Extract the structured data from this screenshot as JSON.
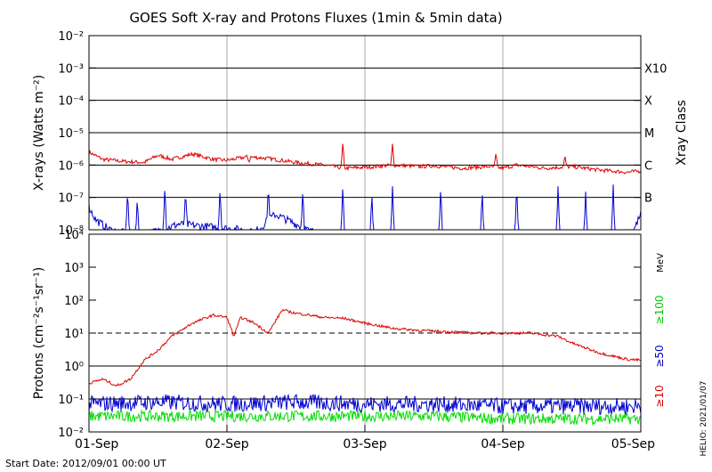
{
  "title": "GOES Soft X-ray and Protons Fluxes   (1min & 5min data)",
  "start_date_label": "Start Date: 2012/09/01 00:00 UT",
  "credit": "HELIO: 2021/01/07",
  "colors": {
    "xray_long": "#dd0000",
    "xray_short": "#0000cc",
    "proton_10": "#dd0000",
    "proton_50": "#0000cc",
    "proton_100": "#00dd00",
    "grid_vertical": "#aaaaaa",
    "grid_horizontal": "#000000"
  },
  "chart_data": [
    {
      "type": "line",
      "panel": "xray",
      "xlabel": "",
      "ylabel": "X-rays (Watts m⁻²)",
      "y_scale": "log",
      "ylim": [
        1e-08,
        0.01
      ],
      "xlim": [
        "2012-09-01",
        "2012-09-05"
      ],
      "y_ticks": [
        "10⁻⁸",
        "10⁻⁷",
        "10⁻⁶",
        "10⁻⁵",
        "10⁻⁴",
        "10⁻³",
        "10⁻²"
      ],
      "right_axis_title": "Xray Class",
      "class_labels": [
        {
          "label": "B",
          "value": 1e-07
        },
        {
          "label": "C",
          "value": 1e-06
        },
        {
          "label": "M",
          "value": 1e-05
        },
        {
          "label": "X",
          "value": 0.0001
        },
        {
          "label": "X10",
          "value": 0.001
        }
      ],
      "horizontal_lines": [
        1e-07,
        1e-06,
        1e-05,
        0.0001,
        0.001
      ],
      "series": [
        {
          "color_key": "xray_long",
          "x": [
            0,
            0.1,
            0.25,
            0.4,
            0.5,
            0.6,
            0.75,
            0.9,
            1.0,
            1.15,
            1.3,
            1.5,
            1.7,
            1.85,
            2.0,
            2.2,
            2.4,
            2.5,
            2.7,
            2.9,
            3.0,
            3.1,
            3.3,
            3.5,
            3.7,
            3.9,
            4.0
          ],
          "y": [
            2.5e-06,
            1.5e-06,
            1.3e-06,
            1.2e-06,
            2e-06,
            1.5e-06,
            2.2e-06,
            1.5e-06,
            1.4e-06,
            1.8e-06,
            1.6e-06,
            1.2e-06,
            1e-06,
            8e-07,
            8.5e-07,
            1e-06,
            9e-07,
            9.5e-07,
            8e-07,
            9e-07,
            8e-07,
            1e-06,
            8e-07,
            9e-07,
            7e-07,
            6e-07,
            6.5e-07
          ],
          "spikes": [
            [
              1.16,
              1.2e-06
            ],
            [
              1.84,
              5.5e-06
            ],
            [
              2.2,
              4.5e-06
            ],
            [
              2.95,
              2.5e-06
            ],
            [
              3.45,
              2e-06
            ]
          ]
        },
        {
          "color_key": "xray_short",
          "x": [
            0,
            0.05,
            0.15,
            0.25,
            0.35,
            0.5,
            0.65,
            0.9,
            1.1,
            1.2,
            1.35,
            1.5,
            1.6,
            1.75,
            1.85,
            2.0,
            2.15,
            2.3,
            2.5,
            2.7,
            2.9,
            3.1,
            3.3,
            3.5,
            3.65,
            3.8,
            3.95,
            4.0
          ],
          "y": [
            5e-08,
            2e-08,
            1e-08,
            8e-09,
            7e-09,
            9e-09,
            1.5e-08,
            1.2e-08,
            1e-08,
            8e-09,
            3e-08,
            1.5e-08,
            9e-09,
            7e-09,
            8e-09,
            7e-09,
            6e-09,
            7e-09,
            6e-09,
            7e-09,
            6e-09,
            7e-09,
            6e-09,
            7e-09,
            6e-09,
            6e-09,
            1e-08,
            3e-08
          ],
          "spikes": [
            [
              0.28,
              2e-07
            ],
            [
              0.35,
              1e-07
            ],
            [
              0.55,
              2.5e-07
            ],
            [
              0.7,
              1.5e-07
            ],
            [
              0.95,
              2e-07
            ],
            [
              1.3,
              2.2e-07
            ],
            [
              1.55,
              1.8e-07
            ],
            [
              1.84,
              2.5e-07
            ],
            [
              2.05,
              1.5e-07
            ],
            [
              2.2,
              2.2e-07
            ],
            [
              2.55,
              2.5e-07
            ],
            [
              2.85,
              1.8e-07
            ],
            [
              3.1,
              2.5e-07
            ],
            [
              3.4,
              2.2e-07
            ],
            [
              3.6,
              1.5e-07
            ],
            [
              3.8,
              2.5e-07
            ]
          ]
        }
      ]
    },
    {
      "type": "line",
      "panel": "protons",
      "xlabel": "",
      "ylabel": "Protons (cm⁻²s⁻¹sr⁻¹)",
      "y_scale": "log",
      "ylim": [
        0.01,
        10000
      ],
      "xlim": [
        "2012-09-01",
        "2012-09-05"
      ],
      "categories": [
        "01-Sep",
        "02-Sep",
        "03-Sep",
        "04-Sep",
        "05-Sep"
      ],
      "y_ticks": [
        "10⁻²",
        "10⁻¹",
        "10⁰",
        "10¹",
        "10²",
        "10³",
        "10⁴"
      ],
      "right_labels": {
        "unit": "MeV",
        "e100": "≥100",
        "e50": "≥50",
        "e10": "≥10"
      },
      "dashed_line": 10,
      "horizontal_lines": [
        0.1,
        1
      ],
      "series": [
        {
          "color_key": "proton_10",
          "x": [
            0,
            0.1,
            0.2,
            0.3,
            0.4,
            0.5,
            0.6,
            0.75,
            0.9,
            1.0,
            1.05,
            1.1,
            1.2,
            1.3,
            1.4,
            1.5,
            1.6,
            1.7,
            1.85,
            2.0,
            2.2,
            2.4,
            2.6,
            2.8,
            3.0,
            3.2,
            3.4,
            3.5,
            3.7,
            3.8,
            3.9,
            4.0
          ],
          "y": [
            0.3,
            0.4,
            0.25,
            0.4,
            1.5,
            3,
            8,
            20,
            35,
            30,
            8,
            30,
            20,
            10,
            50,
            40,
            35,
            30,
            28,
            20,
            14,
            12,
            11,
            10,
            10,
            10,
            8,
            5,
            2.5,
            2,
            1.6,
            1.5
          ]
        },
        {
          "color_key": "proton_50",
          "x": [
            0,
            0.5,
            1.0,
            1.5,
            2.0,
            2.5,
            3.0,
            3.5,
            4.0
          ],
          "y": [
            0.07,
            0.08,
            0.07,
            0.08,
            0.07,
            0.07,
            0.06,
            0.06,
            0.06
          ],
          "noise": 0.5
        },
        {
          "color_key": "proton_100",
          "x": [
            0,
            0.5,
            1.0,
            1.5,
            2.0,
            2.5,
            3.0,
            3.5,
            4.0
          ],
          "y": [
            0.03,
            0.03,
            0.03,
            0.03,
            0.03,
            0.03,
            0.025,
            0.025,
            0.025
          ],
          "noise": 0.35
        }
      ]
    }
  ]
}
